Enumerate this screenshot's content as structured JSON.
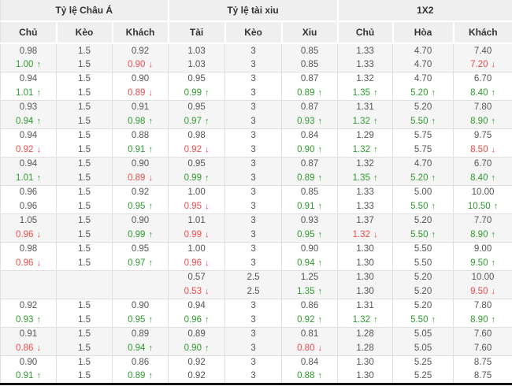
{
  "colors": {
    "up": "#2e9b2e",
    "down": "#ef4b4b",
    "shade": "#f5f5f5",
    "header_bg": "#efefef"
  },
  "sections": [
    {
      "title": "Tỷ lệ Châu Á",
      "columns": [
        "Chủ",
        "Kèo",
        "Khách"
      ]
    },
    {
      "title": "Tỷ lệ tài xiu",
      "columns": [
        "Tài",
        "Kèo",
        "Xiu"
      ]
    },
    {
      "title": "1X2",
      "columns": [
        "Chủ",
        "Hòa",
        "Khách"
      ]
    }
  ],
  "rows": [
    [
      "0.98",
      "1.5",
      "0.92",
      "1.03",
      "3",
      "0.85",
      "1.33",
      "4.70",
      "7.40"
    ],
    [
      "1.00 ↑",
      "1.5",
      "0.90 ↓",
      "1.03",
      "3",
      "0.85",
      "1.33",
      "4.70",
      "7.20 ↓"
    ],
    [
      "0.94",
      "1.5",
      "0.90",
      "0.95",
      "3",
      "0.87",
      "1.32",
      "4.70",
      "6.70"
    ],
    [
      "1.01 ↑",
      "1.5",
      "0.89 ↓",
      "0.99 ↑",
      "3",
      "0.89 ↑",
      "1.35 ↑",
      "5.20 ↑",
      "8.40 ↑"
    ],
    [
      "0.93",
      "1.5",
      "0.91",
      "0.95",
      "3",
      "0.87",
      "1.31",
      "5.20",
      "7.80"
    ],
    [
      "0.94 ↑",
      "1.5",
      "0.98 ↑",
      "0.97 ↑",
      "3",
      "0.93 ↑",
      "1.32 ↑",
      "5.50 ↑",
      "8.90 ↑"
    ],
    [
      "0.94",
      "1.5",
      "0.88",
      "0.98",
      "3",
      "0.84",
      "1.29",
      "5.75",
      "9.75"
    ],
    [
      "0.92 ↓",
      "1.5",
      "0.91 ↑",
      "0.92 ↓",
      "3",
      "0.90 ↑",
      "1.32 ↑",
      "5.75",
      "8.50 ↓"
    ],
    [
      "0.94",
      "1.5",
      "0.90",
      "0.95",
      "3",
      "0.87",
      "1.32",
      "4.70",
      "6.70"
    ],
    [
      "1.01 ↑",
      "1.5",
      "0.89 ↓",
      "0.99 ↑",
      "3",
      "0.89 ↑",
      "1.35 ↑",
      "5.20 ↑",
      "8.40 ↑"
    ],
    [
      "0.96",
      "1.5",
      "0.92",
      "1.00",
      "3",
      "0.85",
      "1.33",
      "5.00",
      "10.00"
    ],
    [
      "0.96",
      "1.5",
      "0.95 ↑",
      "0.95 ↓",
      "3",
      "0.91 ↑",
      "1.33",
      "5.50 ↑",
      "10.50 ↑"
    ],
    [
      "1.05",
      "1.5",
      "0.90",
      "1.01",
      "3",
      "0.93",
      "1.37",
      "5.20",
      "7.70"
    ],
    [
      "0.96 ↓",
      "1.5",
      "0.99 ↑",
      "0.99 ↓",
      "3",
      "0.95 ↑",
      "1.32 ↓",
      "5.50 ↑",
      "8.90 ↑"
    ],
    [
      "0.98",
      "1.5",
      "0.95",
      "1.00",
      "3",
      "0.90",
      "1.30",
      "5.50",
      "9.00"
    ],
    [
      "0.96 ↓",
      "1.5",
      "0.97 ↑",
      "0.96 ↓",
      "3",
      "0.94 ↑",
      "1.30",
      "5.50",
      "9.50 ↑"
    ],
    [
      "",
      "",
      "",
      "0.57",
      "2.5",
      "1.25",
      "1.30",
      "5.20",
      "10.00"
    ],
    [
      "",
      "",
      "",
      "0.53 ↓",
      "2.5",
      "1.35 ↑",
      "1.30",
      "5.20",
      "9.50 ↓"
    ],
    [
      "0.92",
      "1.5",
      "0.90",
      "0.94",
      "3",
      "0.86",
      "1.31",
      "5.20",
      "7.80"
    ],
    [
      "0.93 ↑",
      "1.5",
      "0.95 ↑",
      "0.96 ↑",
      "3",
      "0.92 ↑",
      "1.32 ↑",
      "5.50 ↑",
      "8.90 ↑"
    ],
    [
      "0.91",
      "1.5",
      "0.89",
      "0.89",
      "3",
      "0.81",
      "1.28",
      "5.05",
      "7.60"
    ],
    [
      "0.86 ↓",
      "1.5",
      "0.94 ↑",
      "0.90 ↑",
      "3",
      "0.80 ↓",
      "1.28",
      "5.05",
      "7.60"
    ],
    [
      "0.90",
      "1.5",
      "0.86",
      "0.92",
      "3",
      "0.84",
      "1.30",
      "5.25",
      "8.75"
    ],
    [
      "0.91 ↑",
      "1.5",
      "0.89 ↑",
      "0.92",
      "3",
      "0.88 ↑",
      "1.30",
      "5.25",
      "8.75"
    ]
  ]
}
